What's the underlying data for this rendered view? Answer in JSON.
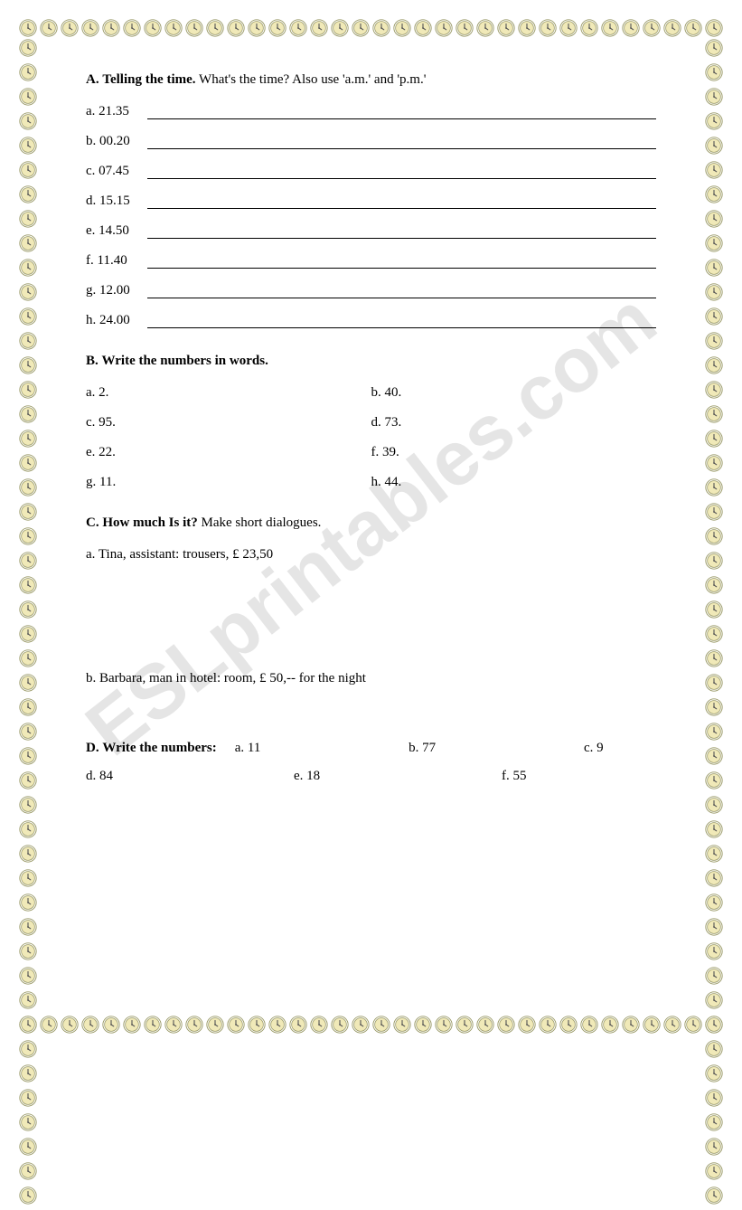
{
  "watermark": "ESLprintables.com",
  "border": {
    "icon_fill": "#f0e9b8",
    "icon_stroke": "#999966",
    "count_horizontal": 34,
    "count_vertical": 48
  },
  "sectionA": {
    "letter": "A.",
    "title": "Telling the time.",
    "instruction": "What's the time? Also use 'a.m.' and 'p.m.'",
    "items": [
      {
        "letter": "a.",
        "time": "21.35"
      },
      {
        "letter": "b.",
        "time": "00.20"
      },
      {
        "letter": "c.",
        "time": "07.45"
      },
      {
        "letter": "d.",
        "time": "15.15"
      },
      {
        "letter": "e.",
        "time": "14.50"
      },
      {
        "letter": "f.",
        "time": "11.40"
      },
      {
        "letter": "g.",
        "time": "12.00"
      },
      {
        "letter": "h.",
        "time": "24.00"
      }
    ]
  },
  "sectionB": {
    "letter": "B.",
    "title": "Write the numbers in words.",
    "items": [
      {
        "label": "a. 2."
      },
      {
        "label": "b. 40."
      },
      {
        "label": "c. 95."
      },
      {
        "label": "d. 73."
      },
      {
        "label": "e. 22."
      },
      {
        "label": "f. 39."
      },
      {
        "label": "g. 11."
      },
      {
        "label": "h. 44."
      }
    ]
  },
  "sectionC": {
    "letter": "C.",
    "title": "How much Is it?",
    "instruction": "Make short dialogues.",
    "items": [
      {
        "label": "a.",
        "text": "Tina, assistant: trousers, £ 23,50"
      },
      {
        "label": "b.",
        "text": "Barbara, man in hotel: room, £ 50,-- for the night"
      }
    ]
  },
  "sectionD": {
    "letter": "D.",
    "title": "Write the numbers:",
    "row1": [
      {
        "label": "a. 11"
      },
      {
        "label": "b. 77"
      },
      {
        "label": "c. 9"
      }
    ],
    "row2": [
      {
        "label": "d. 84"
      },
      {
        "label": "e. 18"
      },
      {
        "label": "f. 55"
      }
    ]
  }
}
